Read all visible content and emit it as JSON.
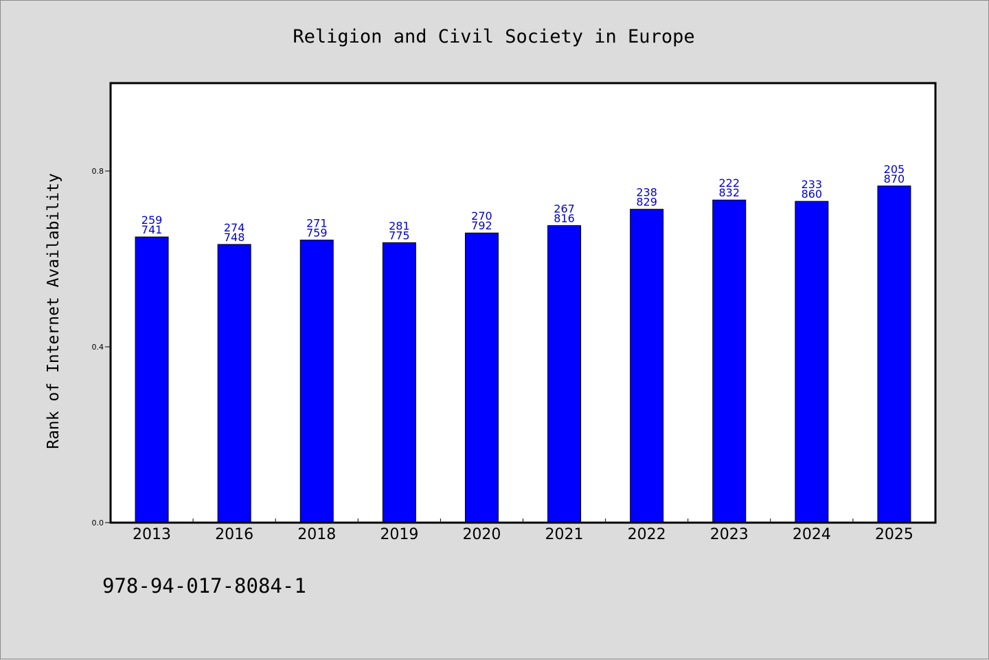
{
  "chart_data": {
    "type": "bar",
    "title": "Religion and Civil Society in Europe",
    "xlabel": "",
    "ylabel": "Rank of Internet Availability",
    "categories": [
      "2013",
      "2016",
      "2018",
      "2019",
      "2020",
      "2021",
      "2022",
      "2023",
      "2024",
      "2025"
    ],
    "values": [
      0.65,
      0.633,
      0.643,
      0.637,
      0.659,
      0.676,
      0.713,
      0.734,
      0.731,
      0.766
    ],
    "bar_labels": [
      [
        "259",
        "741"
      ],
      [
        "274",
        "748"
      ],
      [
        "271",
        "759"
      ],
      [
        "281",
        "775"
      ],
      [
        "270",
        "792"
      ],
      [
        "267",
        "816"
      ],
      [
        "238",
        "829"
      ],
      [
        "222",
        "832"
      ],
      [
        "233",
        "860"
      ],
      [
        "205",
        "870"
      ]
    ],
    "y_ticks": [
      0.0,
      0.4,
      0.8
    ],
    "y_tick_labels": [
      "0.0",
      "0.4",
      "0.8"
    ],
    "ylim": [
      0,
      1.0
    ],
    "grid": false,
    "colors": {
      "bar": "#0000ff",
      "bar_label": "#0000cc",
      "background": "#dcdcdc",
      "plot_background": "#ffffff"
    }
  },
  "footer_text": "978-94-017-8084-1"
}
